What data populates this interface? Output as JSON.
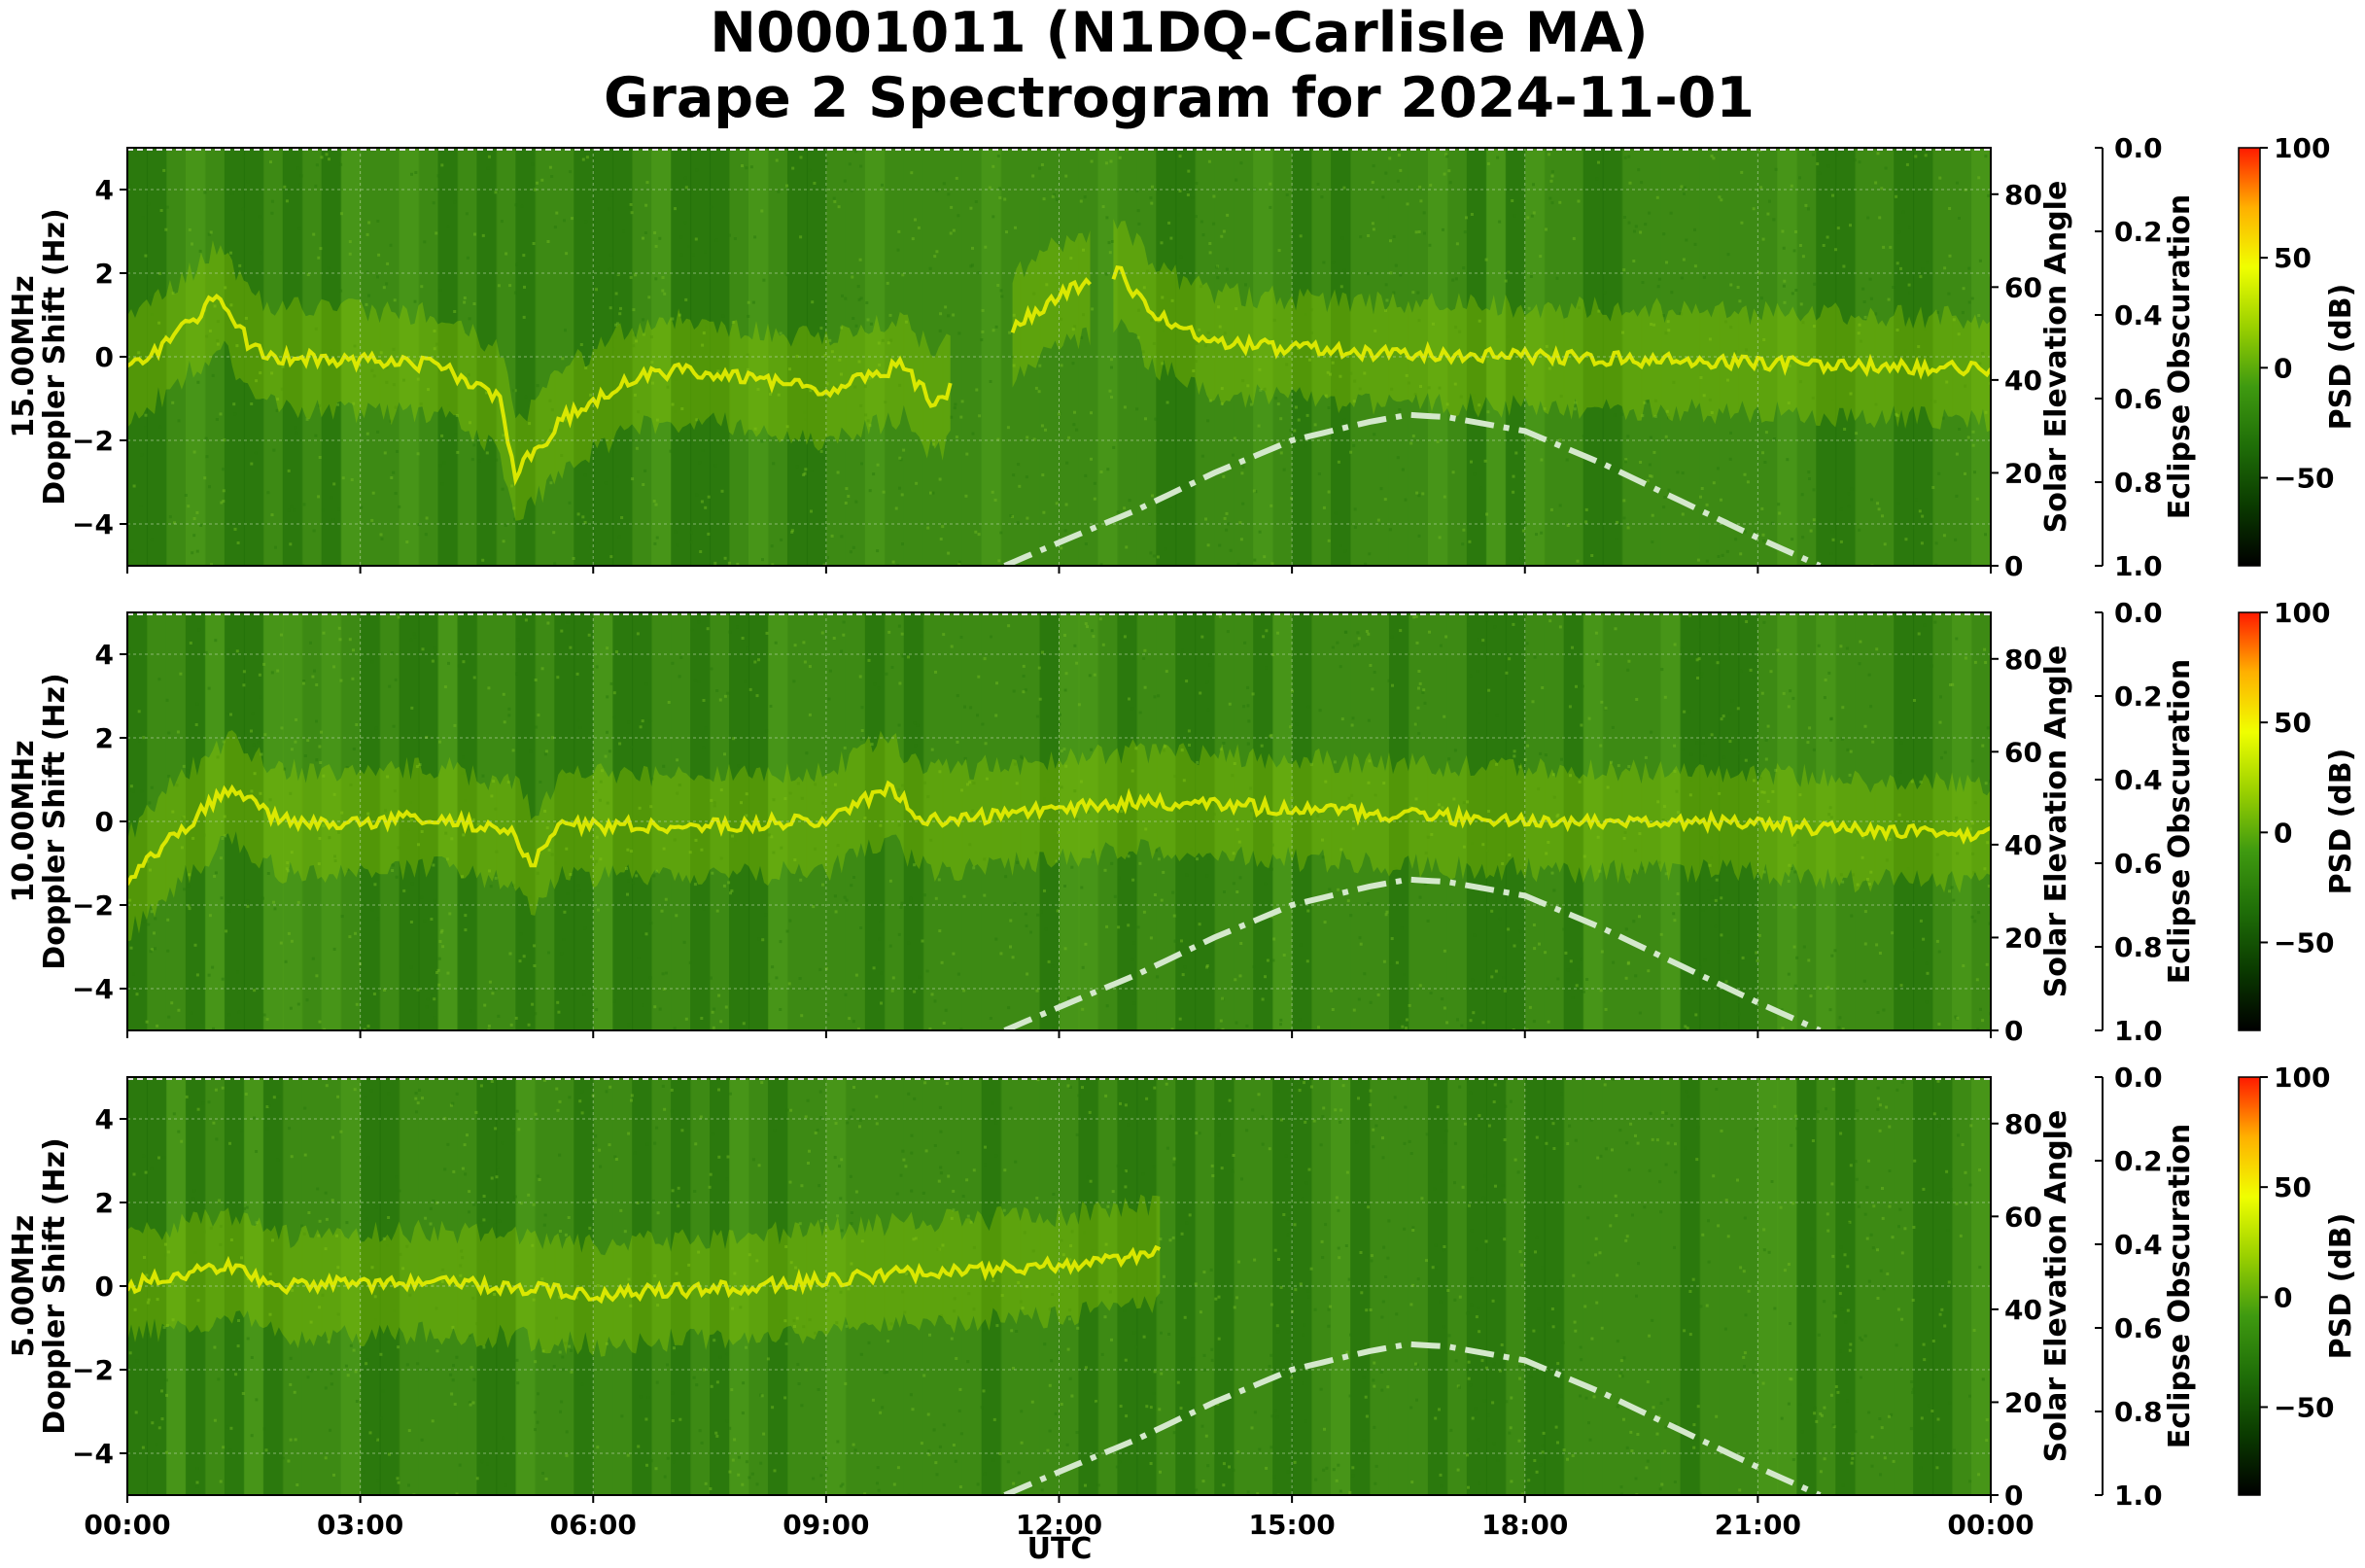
{
  "title_line1": "N0001011 (N1DQ-Carlisle MA)",
  "title_line2": "Grape 2 Spectrogram for 2024-11-01",
  "colors": {
    "background_green": "#3e8a14",
    "dark_green": "#1f6e08",
    "signal_yellow": "#e8f000",
    "solar_curve": "#d4e8cc",
    "grid": "#bfd8b0",
    "colorbar_stops": [
      "#000000",
      "#0a3a00",
      "#1f6e08",
      "#3f9a10",
      "#9ad000",
      "#f0ff00",
      "#ffb000",
      "#ff1a00"
    ]
  },
  "chart_data": {
    "type": "heatmap",
    "xlabel": "UTC",
    "x_ticks": [
      "00:00",
      "03:00",
      "06:00",
      "09:00",
      "12:00",
      "15:00",
      "18:00",
      "21:00",
      "00:00"
    ],
    "x_range_hours": [
      0,
      24
    ],
    "grid": true,
    "panels": [
      {
        "ylabel_freq": "15.00MHz",
        "ylabel": "Doppler Shift (Hz)",
        "ylim": [
          -5,
          5
        ],
        "y_ticks": [
          "4",
          "2",
          "0",
          "−2",
          "−4"
        ],
        "solar_ylabel": "Solar Elevation Angle",
        "solar_ylim": [
          0,
          90
        ],
        "solar_ticks": [
          "80",
          "60",
          "40",
          "20",
          "0"
        ],
        "eclipse_ylabel": "Eclipse Obscuration",
        "eclipse_ylim": [
          0.0,
          1.0
        ],
        "eclipse_ticks": [
          "0.0",
          "0.2",
          "0.4",
          "0.6",
          "0.8",
          "1.0"
        ],
        "colorbar_label": "PSD (dB)",
        "colorbar_range": [
          -90,
          100
        ],
        "colorbar_ticks": [
          "100",
          "50",
          "0",
          "−50"
        ],
        "doppler_trace": [
          [
            0,
            -0.3
          ],
          [
            0.5,
            0.3
          ],
          [
            1.2,
            1.5
          ],
          [
            1.6,
            0.2
          ],
          [
            2,
            0
          ],
          [
            3,
            -0.1
          ],
          [
            4,
            -0.2
          ],
          [
            4.8,
            -1.0
          ],
          [
            5,
            -2.8
          ],
          [
            5.6,
            -1.5
          ],
          [
            6.5,
            -0.5
          ],
          [
            7.2,
            -0.3
          ],
          [
            8,
            -0.5
          ],
          [
            9,
            -0.8
          ],
          [
            10,
            -0.2
          ],
          [
            10.4,
            -1.2
          ],
          [
            11.2,
            0.4
          ],
          [
            12.0,
            1.5
          ],
          [
            12.8,
            2.0
          ],
          [
            13.2,
            1.0
          ],
          [
            14,
            0.3
          ],
          [
            16,
            0.1
          ],
          [
            18,
            0.0
          ],
          [
            20,
            -0.1
          ],
          [
            22,
            -0.2
          ],
          [
            24,
            -0.3
          ]
        ],
        "trace_segments": [
          [
            0,
            10.6
          ],
          [
            11.4,
            12.4
          ],
          [
            12.7,
            24
          ]
        ]
      },
      {
        "ylabel_freq": "10.00MHz",
        "ylabel": "Doppler Shift (Hz)",
        "ylim": [
          -5,
          5
        ],
        "y_ticks": [
          "4",
          "2",
          "0",
          "−2",
          "−4"
        ],
        "solar_ylabel": "Solar Elevation Angle",
        "solar_ylim": [
          0,
          90
        ],
        "solar_ticks": [
          "80",
          "60",
          "40",
          "20",
          "0"
        ],
        "eclipse_ylabel": "Eclipse Obscuration",
        "eclipse_ylim": [
          0.0,
          1.0
        ],
        "eclipse_ticks": [
          "0.0",
          "0.2",
          "0.4",
          "0.6",
          "0.8",
          "1.0"
        ],
        "colorbar_label": "PSD (dB)",
        "colorbar_range": [
          -90,
          100
        ],
        "colorbar_ticks": [
          "100",
          "50",
          "0",
          "−50"
        ],
        "doppler_trace": [
          [
            0,
            -1.5
          ],
          [
            0.5,
            -0.5
          ],
          [
            1.3,
            0.8
          ],
          [
            2,
            0
          ],
          [
            3,
            0
          ],
          [
            4,
            0.1
          ],
          [
            5,
            -0.3
          ],
          [
            5.2,
            -1.0
          ],
          [
            5.6,
            -0.1
          ],
          [
            7,
            -0.1
          ],
          [
            9,
            0
          ],
          [
            9.8,
            0.8
          ],
          [
            10.3,
            0
          ],
          [
            11,
            0.1
          ],
          [
            12,
            0.3
          ],
          [
            13,
            0.5
          ],
          [
            15,
            0.3
          ],
          [
            17,
            0.1
          ],
          [
            19,
            0.0
          ],
          [
            21,
            0.0
          ],
          [
            22,
            -0.2
          ],
          [
            24,
            -0.3
          ]
        ],
        "trace_segments": [
          [
            0,
            24
          ]
        ]
      },
      {
        "ylabel_freq": "5.00MHz",
        "ylabel": "Doppler Shift (Hz)",
        "ylim": [
          -5,
          5
        ],
        "y_ticks": [
          "4",
          "2",
          "0",
          "−2",
          "−4"
        ],
        "solar_ylabel": "Solar Elevation Angle",
        "solar_ylim": [
          0,
          90
        ],
        "solar_ticks": [
          "80",
          "60",
          "40",
          "20",
          "0"
        ],
        "eclipse_ylabel": "Eclipse Obscuration",
        "eclipse_ylim": [
          0.0,
          1.0
        ],
        "eclipse_ticks": [
          "0.0",
          "0.2",
          "0.4",
          "0.6",
          "0.8",
          "1.0"
        ],
        "colorbar_label": "PSD (dB)",
        "colorbar_range": [
          -90,
          100
        ],
        "colorbar_ticks": [
          "100",
          "50",
          "0",
          "−50"
        ],
        "doppler_trace": [
          [
            0,
            0
          ],
          [
            1.3,
            0.5
          ],
          [
            2,
            0
          ],
          [
            4,
            0.1
          ],
          [
            6,
            -0.2
          ],
          [
            8,
            0
          ],
          [
            10,
            0.3
          ],
          [
            12,
            0.5
          ],
          [
            13.3,
            0.8
          ]
        ],
        "trace_segments": [
          [
            0,
            13.3
          ]
        ]
      }
    ],
    "solar_elevation_curve": [
      [
        11.3,
        0
      ],
      [
        12,
        5
      ],
      [
        13,
        12
      ],
      [
        14,
        20
      ],
      [
        15,
        27
      ],
      [
        16,
        31
      ],
      [
        16.5,
        32.5
      ],
      [
        17,
        32
      ],
      [
        18,
        29
      ],
      [
        19,
        22
      ],
      [
        20,
        14
      ],
      [
        21,
        6
      ],
      [
        21.8,
        0
      ]
    ]
  }
}
